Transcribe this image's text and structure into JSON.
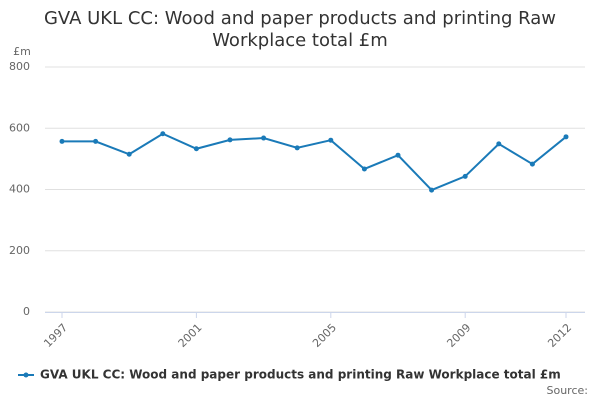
{
  "chart_data": {
    "type": "line",
    "title": "GVA UKL CC: Wood and paper products and printing Raw Workplace total £m",
    "y_label": "£m",
    "source": "Source:",
    "x": [
      1997,
      1998,
      1999,
      2000,
      2001,
      2002,
      2003,
      2004,
      2005,
      2006,
      2007,
      2008,
      2009,
      2010,
      2011,
      2012
    ],
    "series": [
      {
        "name": "GVA UKL CC: Wood and paper products and printing Raw Workplace total £m",
        "color": "#1a7ab8",
        "values": [
          557,
          557,
          515,
          582,
          533,
          562,
          568,
          536,
          561,
          467,
          512,
          398,
          443,
          549,
          483,
          572
        ]
      }
    ],
    "xlim": [
      1997,
      2012
    ],
    "xticks": [
      1997,
      2001,
      2005,
      2009,
      2012
    ],
    "ylim": [
      0,
      800
    ],
    "yticks": [
      0,
      200,
      400,
      600,
      800
    ],
    "grid": true,
    "legend": "bottom"
  }
}
